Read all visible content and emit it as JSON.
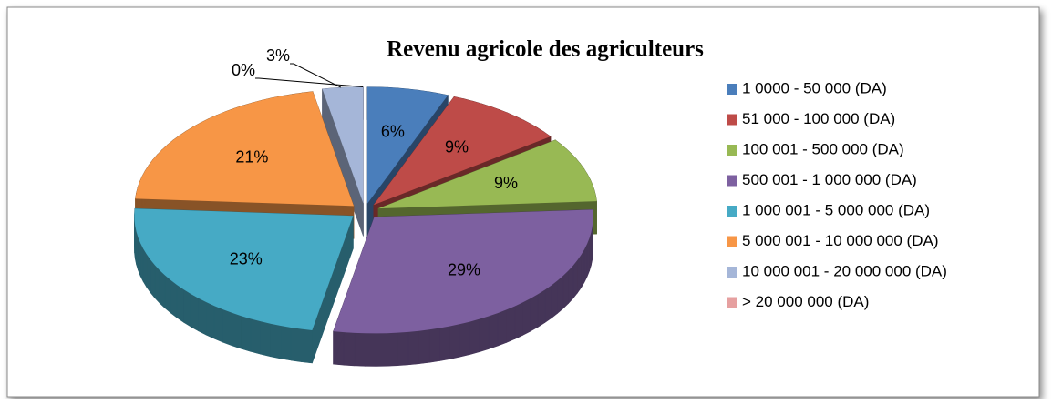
{
  "chart_data": {
    "type": "pie3d",
    "title": "Revenu agricole des agriculteurs",
    "categories": [
      "1 0000 - 50 000 (DA)",
      "51 000 - 100 000 (DA)",
      "100 001 - 500 000 (DA)",
      "500 001 - 1 000 000 (DA)",
      "1 000 001 - 5 000 000 (DA)",
      "5 000 001 - 10 000 000 (DA)",
      "10 000 001 - 20 000 000 (DA)",
      "> 20 000 000 (DA)"
    ],
    "values": [
      6,
      9,
      9,
      29,
      23,
      21,
      3,
      0
    ],
    "value_labels": [
      "6%",
      "9%",
      "9%",
      "29%",
      "23%",
      "21%",
      "3%",
      "0%"
    ],
    "colors": [
      "#4a7ebb",
      "#be4b48",
      "#98b954",
      "#7d60a0",
      "#46aac5",
      "#f79646",
      "#a5b6d8",
      "#e6a0a0"
    ],
    "legend": "right",
    "exploded": true
  }
}
